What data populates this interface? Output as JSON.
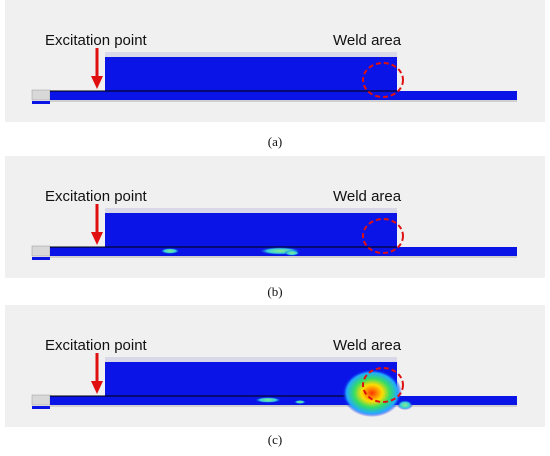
{
  "panels": [
    {
      "excitation_label": "Excitation point",
      "weld_label": "Weld area",
      "caption": "(a)"
    },
    {
      "excitation_label": "Excitation point",
      "weld_label": "Weld area",
      "caption": "(b)"
    },
    {
      "excitation_label": "Excitation point",
      "weld_label": "Weld area",
      "caption": "(c)"
    }
  ]
}
